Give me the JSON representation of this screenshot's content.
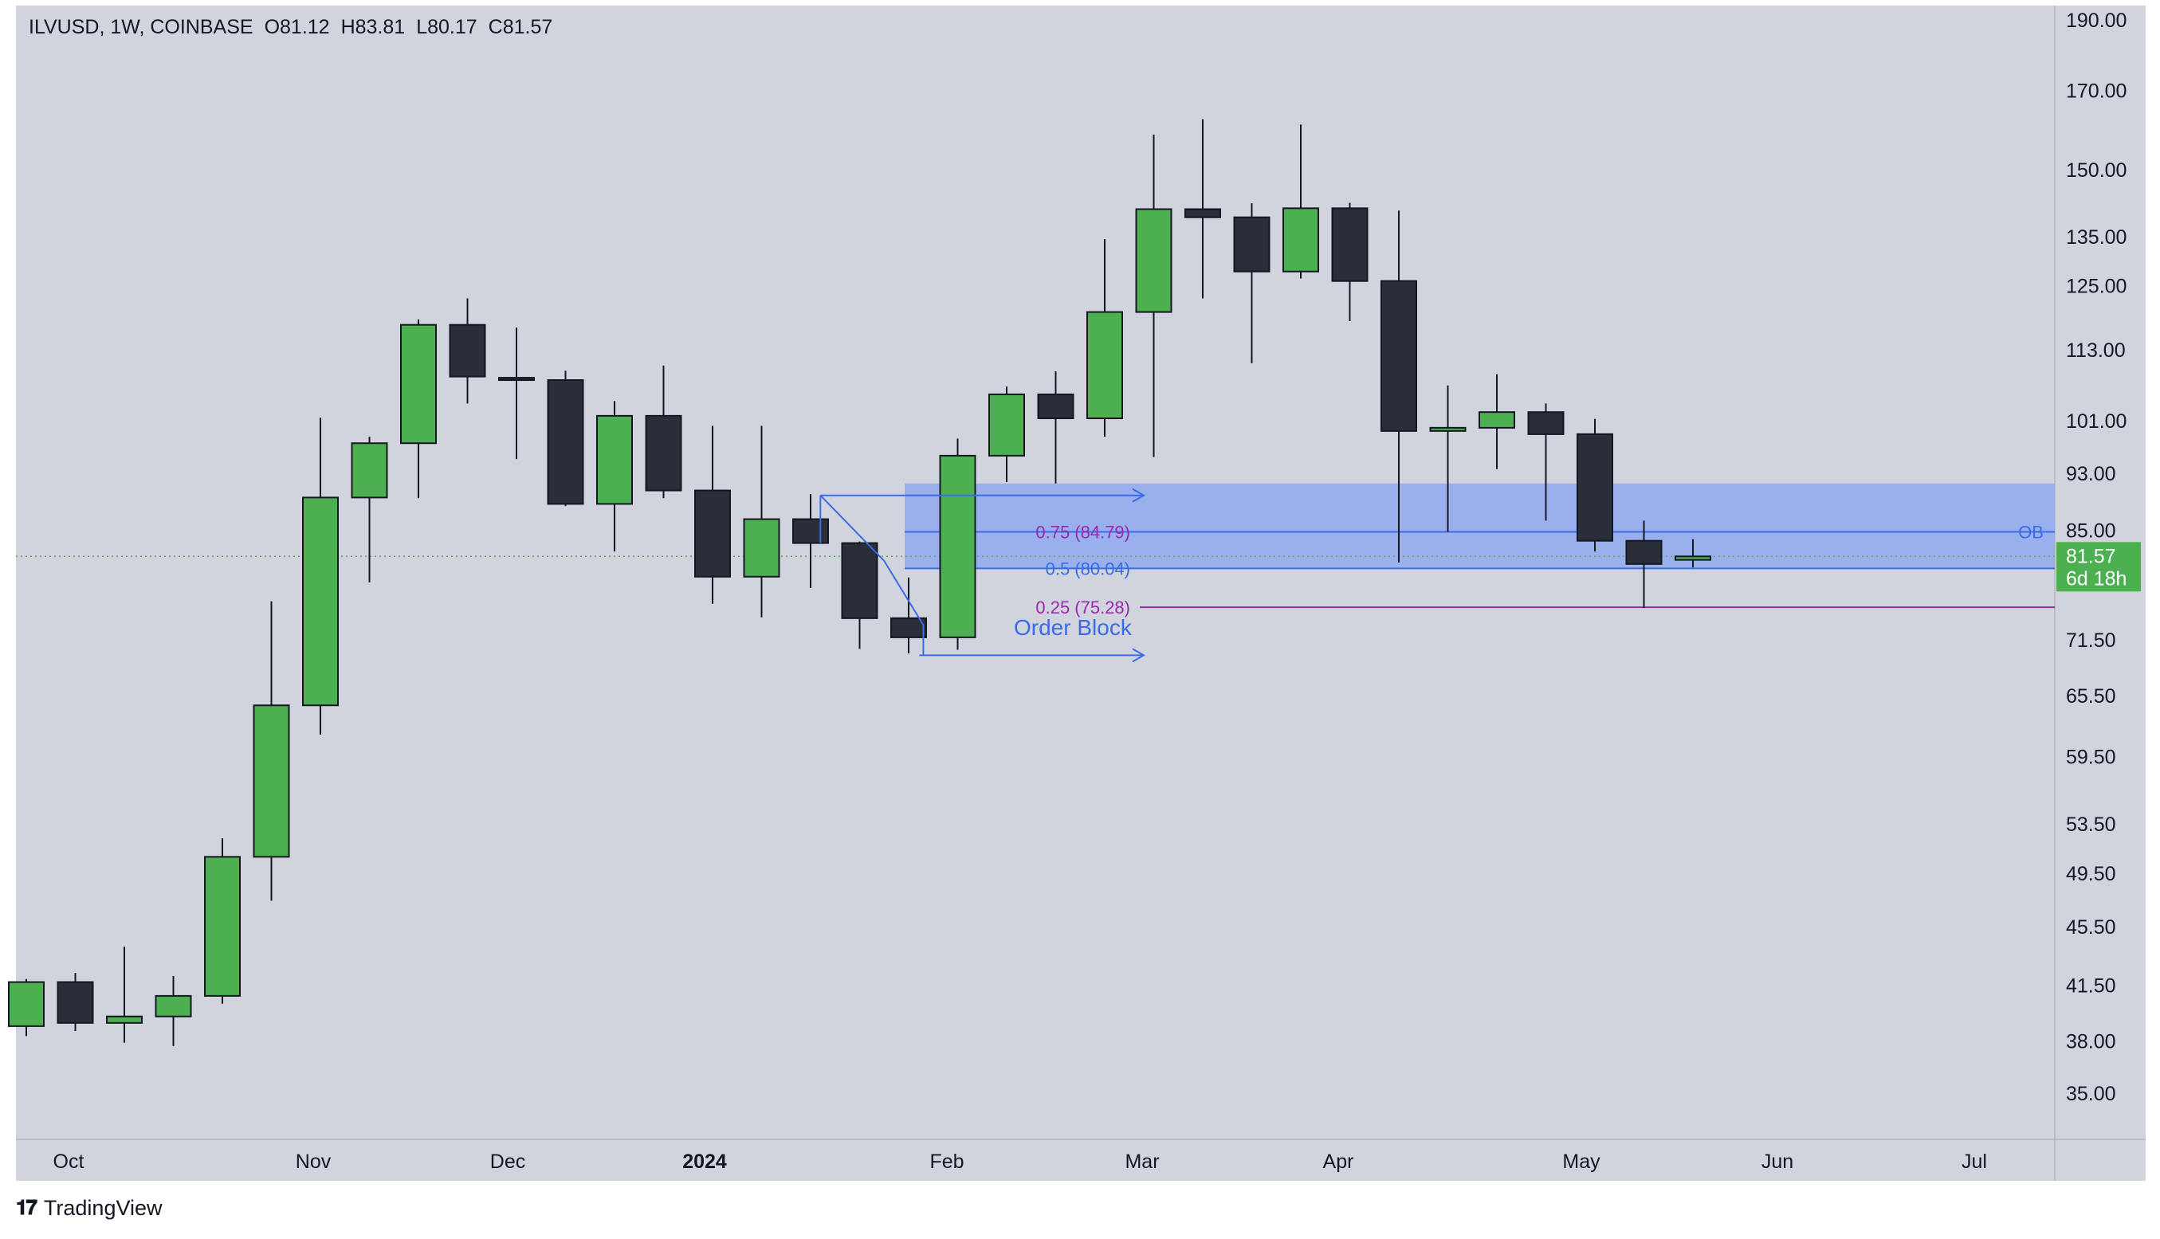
{
  "header": {
    "symbol": "ILVUSD, 1W, COINBASE",
    "open": "O81.12",
    "high": "H83.81",
    "low": "L80.17",
    "close": "C81.57"
  },
  "footer": {
    "brand": "TradingView"
  },
  "colors": {
    "up": "#4CAF50",
    "down": "#2A2E39",
    "background": "#D1D4DC",
    "zone": "#8FA9EE",
    "fib_blue": "#3B6BE8",
    "fib_purple": "#9C27B0",
    "price_tag": "#4CAF50"
  },
  "price_tag": {
    "price": "81.57",
    "countdown": "6d 18h"
  },
  "ob_label": "OB",
  "fib_labels": [
    {
      "text": "0.75 (84.79)",
      "value": 84.79
    },
    {
      "text": "0.5 (80.04)",
      "value": 80.04
    },
    {
      "text": "0.25 (75.28)",
      "value": 75.28
    }
  ],
  "order_block": {
    "label": "Order Block",
    "top": 91.5,
    "bottom": 80.04,
    "from_week": 18
  },
  "chart_data": {
    "type": "candlestick",
    "scale": "log",
    "x_labels": [
      "Oct",
      "Nov",
      "Dec",
      "2024",
      "Feb",
      "Mar",
      "Apr",
      "May",
      "Jun",
      "Jul"
    ],
    "y_ticks": [
      "190.00",
      "170.00",
      "150.00",
      "135.00",
      "125.00",
      "113.00",
      "101.00",
      "93.00",
      "85.00",
      "71.50",
      "65.50",
      "59.50",
      "53.50",
      "49.50",
      "45.50",
      "41.50",
      "38.00",
      "35.00"
    ],
    "candles": [
      {
        "o": 38.9,
        "h": 41.9,
        "l": 38.3,
        "c": 41.7
      },
      {
        "o": 41.7,
        "h": 42.3,
        "l": 38.6,
        "c": 39.1
      },
      {
        "o": 39.1,
        "h": 44.1,
        "l": 37.9,
        "c": 39.5
      },
      {
        "o": 39.5,
        "h": 42.1,
        "l": 37.7,
        "c": 40.8
      },
      {
        "o": 40.8,
        "h": 52.3,
        "l": 40.3,
        "c": 50.8
      },
      {
        "o": 50.8,
        "h": 76.0,
        "l": 47.4,
        "c": 64.5
      },
      {
        "o": 64.5,
        "h": 101.5,
        "l": 61.6,
        "c": 89.5
      },
      {
        "o": 89.5,
        "h": 98.5,
        "l": 78.3,
        "c": 97.5
      },
      {
        "o": 97.5,
        "h": 118.5,
        "l": 89.4,
        "c": 117.5
      },
      {
        "o": 117.5,
        "h": 122.5,
        "l": 103.8,
        "c": 108.3
      },
      {
        "o": 108.1,
        "h": 117.0,
        "l": 95.1,
        "c": 107.7
      },
      {
        "o": 107.7,
        "h": 109.3,
        "l": 88.3,
        "c": 88.6
      },
      {
        "o": 88.6,
        "h": 104.2,
        "l": 82.2,
        "c": 101.8
      },
      {
        "o": 101.8,
        "h": 110.2,
        "l": 89.4,
        "c": 90.5
      },
      {
        "o": 90.5,
        "h": 100.2,
        "l": 75.7,
        "c": 79.0
      },
      {
        "o": 79.0,
        "h": 100.2,
        "l": 74.1,
        "c": 86.5
      },
      {
        "o": 86.5,
        "h": 90.0,
        "l": 77.6,
        "c": 83.3
      },
      {
        "o": 83.3,
        "h": 83.5,
        "l": 70.5,
        "c": 74.0
      },
      {
        "o": 74.0,
        "h": 78.9,
        "l": 70.0,
        "c": 71.8
      },
      {
        "o": 71.8,
        "h": 98.2,
        "l": 70.4,
        "c": 95.6
      },
      {
        "o": 95.6,
        "h": 106.6,
        "l": 91.7,
        "c": 105.3
      },
      {
        "o": 105.3,
        "h": 109.2,
        "l": 91.5,
        "c": 101.4
      },
      {
        "o": 101.4,
        "h": 134.5,
        "l": 98.5,
        "c": 119.9
      },
      {
        "o": 119.9,
        "h": 158.6,
        "l": 95.4,
        "c": 141.0
      },
      {
        "o": 141.0,
        "h": 162.5,
        "l": 122.5,
        "c": 139.2
      },
      {
        "o": 139.2,
        "h": 142.3,
        "l": 110.6,
        "c": 127.8
      },
      {
        "o": 127.8,
        "h": 161.1,
        "l": 126.4,
        "c": 141.2
      },
      {
        "o": 141.2,
        "h": 142.4,
        "l": 118.2,
        "c": 125.9
      },
      {
        "o": 125.9,
        "h": 140.7,
        "l": 80.8,
        "c": 99.4
      },
      {
        "o": 99.4,
        "h": 106.8,
        "l": 84.8,
        "c": 99.9
      },
      {
        "o": 99.9,
        "h": 108.7,
        "l": 93.6,
        "c": 102.4
      },
      {
        "o": 102.4,
        "h": 103.8,
        "l": 86.3,
        "c": 98.9
      },
      {
        "o": 98.9,
        "h": 101.3,
        "l": 82.2,
        "c": 83.6
      },
      {
        "o": 83.6,
        "h": 86.3,
        "l": 75.2,
        "c": 80.6
      },
      {
        "o": 81.12,
        "h": 83.81,
        "l": 80.17,
        "c": 81.57
      }
    ]
  }
}
